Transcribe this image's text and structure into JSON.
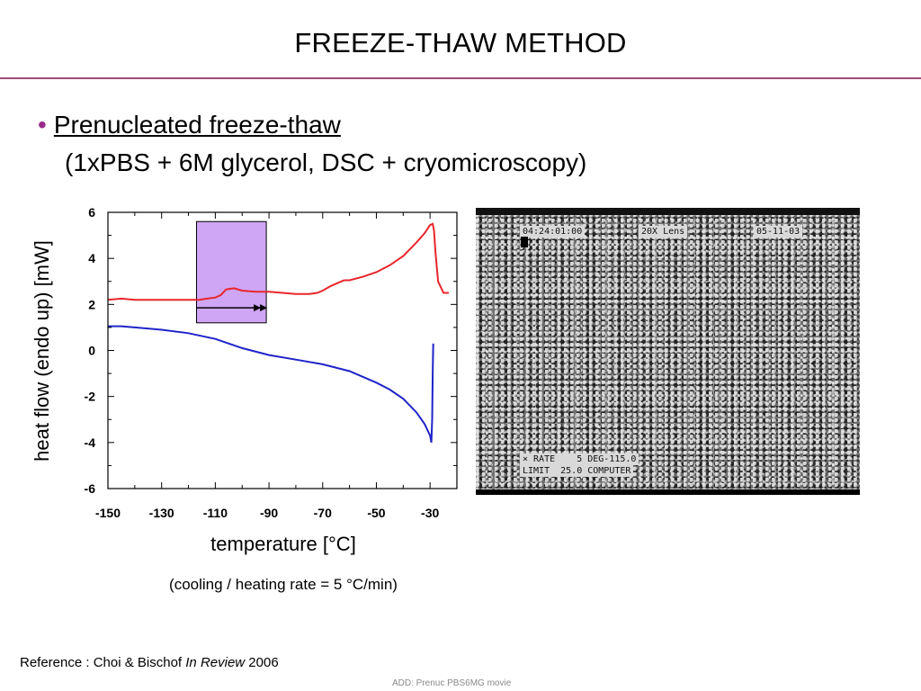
{
  "slide": {
    "title": "FREEZE-THAW METHOD",
    "bullet_heading": "Prenucleated freeze-thaw",
    "bullet_sub": "(1xPBS + 6M glycerol, DSC + cryomicroscopy)",
    "reference_prefix": "Reference : Choi & Bischof ",
    "reference_journal": "In Review",
    "reference_year": " 2006",
    "footer_note": "ADD: Prenuc PBS6MG movie",
    "accent_color": "#9a4a7a"
  },
  "chart_data": {
    "type": "line",
    "xlabel": "temperature [°C]",
    "ylabel": "heat flow (endo up) [mW]",
    "rate_note": "(cooling / heating rate = 5 °C/min)",
    "xlim": [
      -150,
      -20
    ],
    "ylim": [
      -6,
      6
    ],
    "xticks": [
      -150,
      -130,
      -110,
      -90,
      -70,
      -50,
      -30
    ],
    "yticks": [
      6,
      4,
      2,
      0,
      -2,
      -4,
      -6
    ],
    "highlight": {
      "x_range": [
        -117,
        -91
      ],
      "y_range": [
        1.2,
        5.6
      ],
      "color": "#cfa6f5",
      "arrow_y": 1.85
    },
    "series": [
      {
        "color": "#e8262b",
        "x": [
          -150,
          -145,
          -140,
          -130,
          -120,
          -116,
          -113,
          -110,
          -108,
          -106,
          -103,
          -100,
          -95,
          -90,
          -85,
          -80,
          -75,
          -72,
          -70,
          -67,
          -65,
          -62,
          -60,
          -55,
          -50,
          -45,
          -40,
          -35,
          -32,
          -30,
          -29,
          -28.5,
          -28,
          -27,
          -25,
          -23
        ],
        "y": [
          2.2,
          2.25,
          2.2,
          2.2,
          2.2,
          2.2,
          2.25,
          2.3,
          2.4,
          2.65,
          2.7,
          2.6,
          2.55,
          2.55,
          2.5,
          2.45,
          2.45,
          2.5,
          2.6,
          2.8,
          2.9,
          3.05,
          3.05,
          3.2,
          3.4,
          3.7,
          4.1,
          4.7,
          5.1,
          5.45,
          5.5,
          5.2,
          4.3,
          3.0,
          2.5,
          2.5
        ]
      },
      {
        "color": "#1f24c8",
        "x": [
          -150,
          -145,
          -140,
          -130,
          -120,
          -110,
          -100,
          -90,
          -80,
          -70,
          -60,
          -50,
          -45,
          -40,
          -35,
          -32,
          -30,
          -29.5,
          -29.2,
          -29,
          -28.8
        ],
        "y": [
          1.05,
          1.05,
          1.0,
          0.9,
          0.75,
          0.5,
          0.1,
          -0.2,
          -0.4,
          -0.6,
          -0.9,
          -1.4,
          -1.7,
          -2.1,
          -2.7,
          -3.2,
          -3.7,
          -4.0,
          -3.0,
          -1.0,
          0.3
        ]
      }
    ]
  },
  "micrograph": {
    "timestamp": "04:24:01:00",
    "lens": "20X Lens",
    "date": "05-11-03",
    "rate_line": "× RATE    5 DEG-115.0",
    "limit_line": "LIMIT  25.0 COMPUTER"
  }
}
